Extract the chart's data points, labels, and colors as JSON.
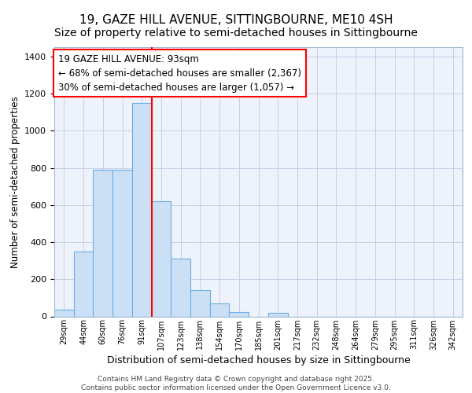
{
  "title": "19, GAZE HILL AVENUE, SITTINGBOURNE, ME10 4SH",
  "subtitle": "Size of property relative to semi-detached houses in Sittingbourne",
  "xlabel": "Distribution of semi-detached houses by size in Sittingbourne",
  "ylabel": "Number of semi-detached properties",
  "bar_labels": [
    "29sqm",
    "44sqm",
    "60sqm",
    "76sqm",
    "91sqm",
    "107sqm",
    "123sqm",
    "138sqm",
    "154sqm",
    "170sqm",
    "185sqm",
    "201sqm",
    "217sqm",
    "232sqm",
    "248sqm",
    "264sqm",
    "279sqm",
    "295sqm",
    "311sqm",
    "326sqm",
    "342sqm"
  ],
  "bar_values": [
    35,
    350,
    790,
    790,
    1150,
    620,
    310,
    140,
    70,
    25,
    0,
    20,
    0,
    0,
    0,
    0,
    0,
    0,
    0,
    0,
    0
  ],
  "bar_color": "#cce0f5",
  "bar_edge_color": "#6aade4",
  "bar_linewidth": 0.8,
  "ylim": [
    0,
    1450
  ],
  "yticks": [
    0,
    200,
    400,
    600,
    800,
    1000,
    1200,
    1400
  ],
  "annotation_text": "19 GAZE HILL AVENUE: 93sqm\n← 68% of semi-detached houses are smaller (2,367)\n30% of semi-detached houses are larger (1,057) →",
  "annotation_fontsize": 8.5,
  "title_fontsize": 11,
  "subtitle_fontsize": 10,
  "xlabel_fontsize": 9,
  "ylabel_fontsize": 8.5,
  "footer_text": "Contains HM Land Registry data © Crown copyright and database right 2025.\nContains public sector information licensed under the Open Government Licence v3.0.",
  "background_color": "#eef2fb",
  "grid_color": "#c5cfe8",
  "fig_bg_color": "#ffffff"
}
